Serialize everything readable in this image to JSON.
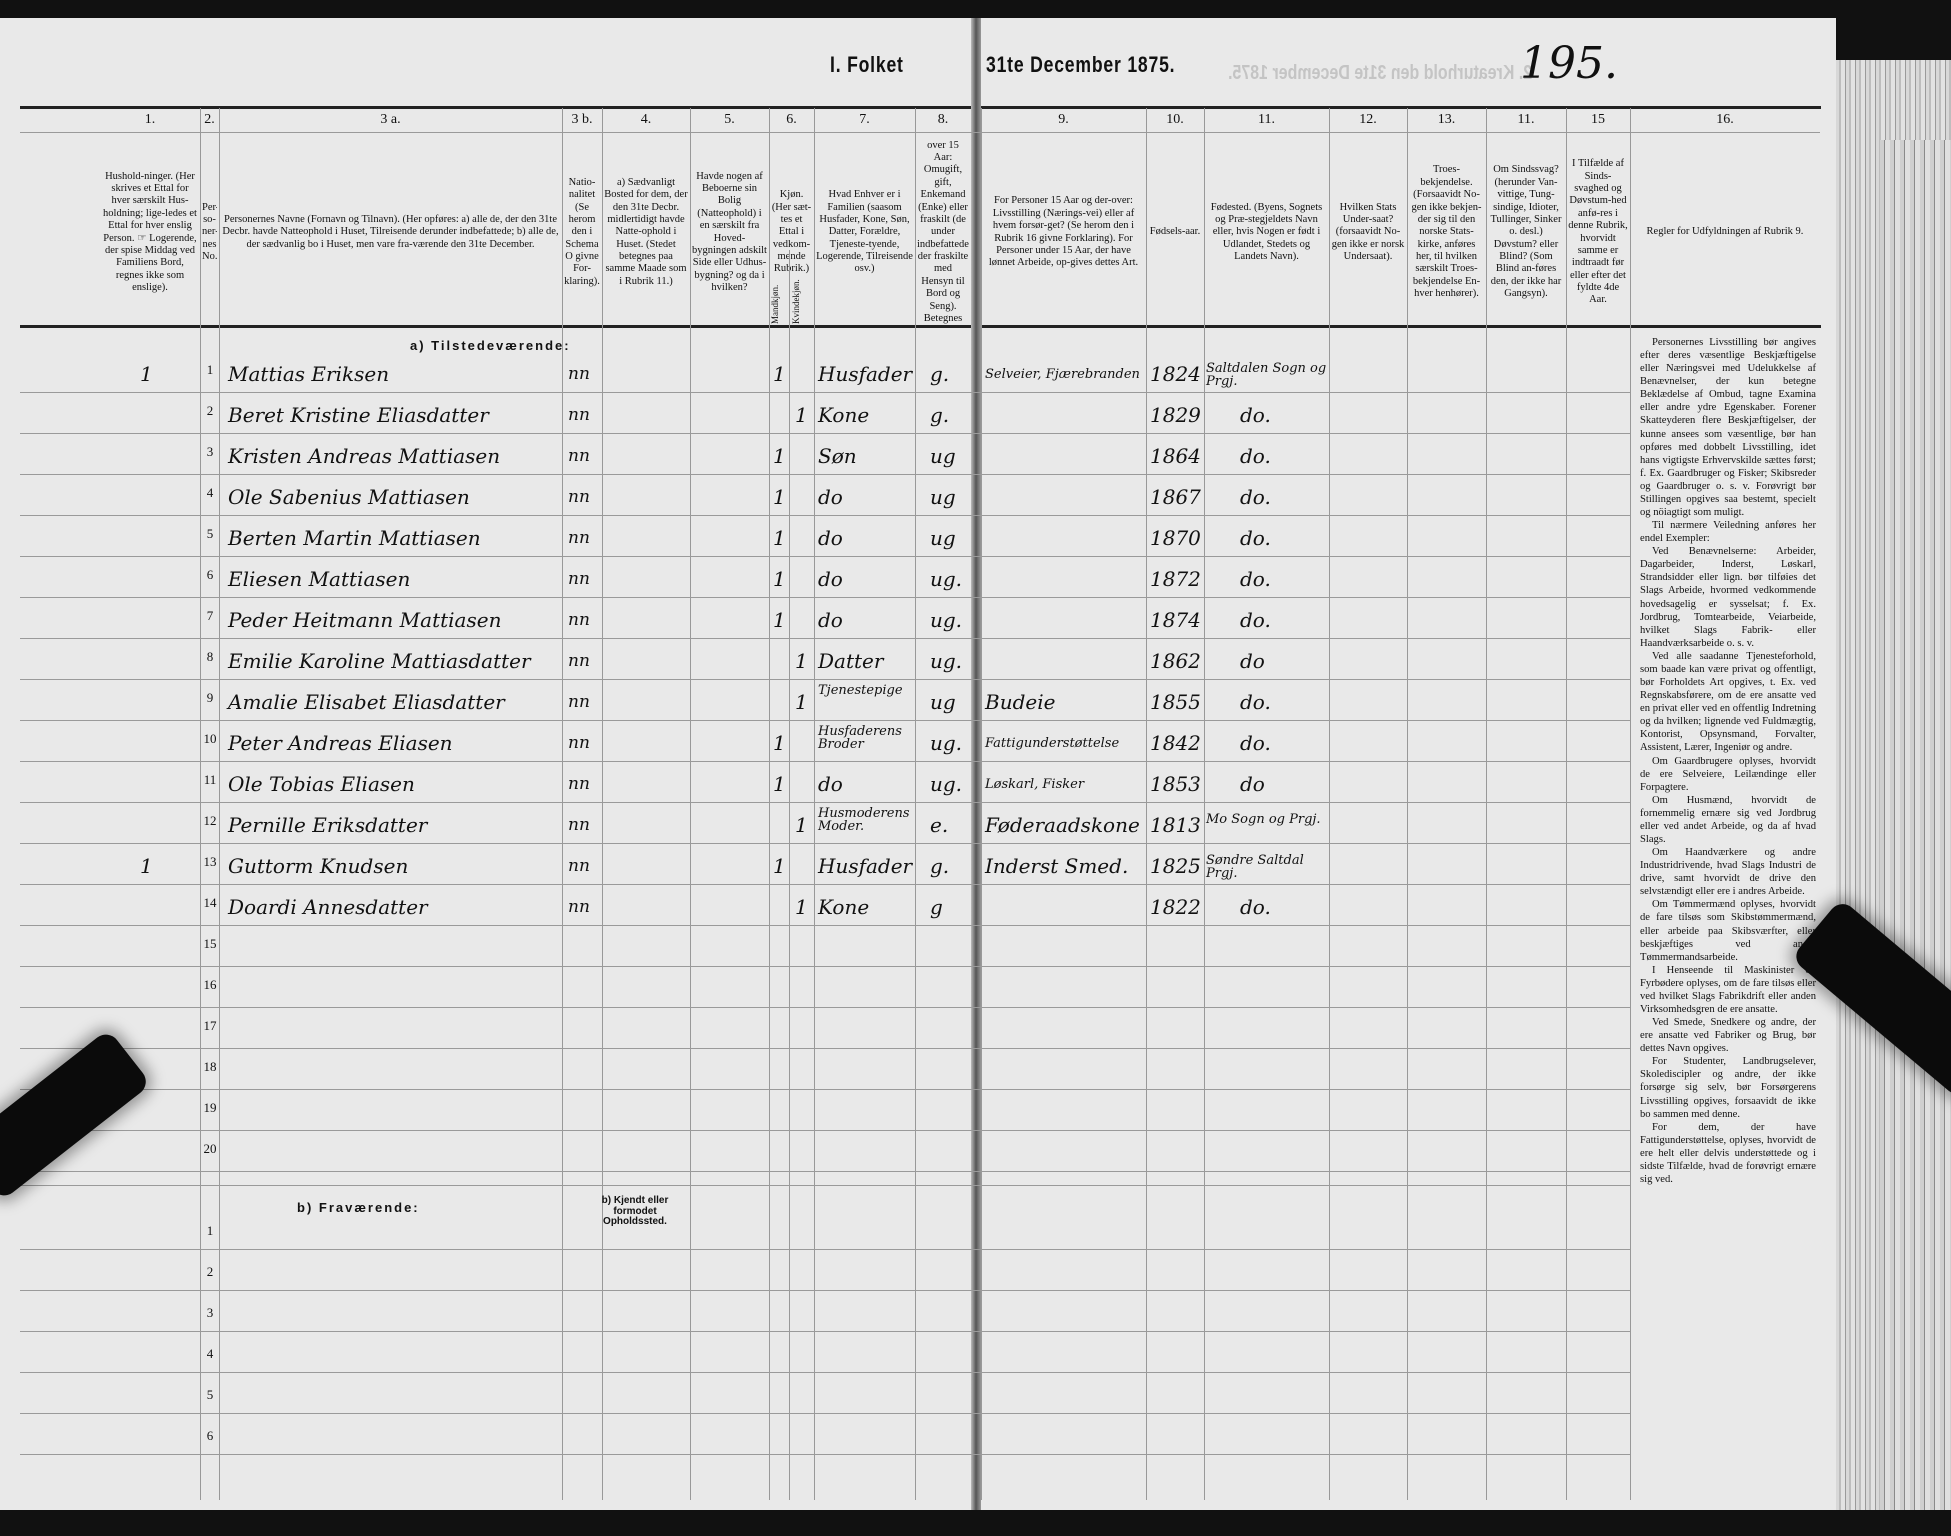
{
  "header": {
    "title_left": "I. Folket",
    "title_right": "31te December 1875.",
    "ghost_title": "2. Kreaturhold den 31te December 1875.",
    "page_number": "195."
  },
  "columns": [
    {
      "num": "1.",
      "text": "Hushold-ninger. (Her skrives et Ettal for hver særskilt Hus-holdning; lige-ledes et Ettal for hver enslig Person. ☞ Logerende, der spise Middag ved Familiens Bord, regnes ikke som enslige)."
    },
    {
      "num": "2.",
      "text": "Per-so-ner-nes No."
    },
    {
      "num": "3 a.",
      "text": "Personernes Navne (Fornavn og Tilnavn). (Her opføres: a) alle de, der den 31te Decbr. havde Natteophold i Huset, Tilreisende derunder indbefattede; b) alle de, der sædvanlig bo i Huset, men vare fra-værende den 31te December."
    },
    {
      "num": "3 b.",
      "text": "Natio-nalitet (Se herom den i Schema O givne For-klaring)."
    },
    {
      "num": "4.",
      "text": "a) Sædvanligt Bosted for dem, der den 31te Decbr. midlertidigt havde Natte-ophold i Huset. (Stedet betegnes paa samme Maade som i Rubrik 11.)"
    },
    {
      "num": "5.",
      "text": "Havde nogen af Beboerne sin Bolig (Natteophold) i en særskilt fra Hoved-bygningen adskilt Side eller Udhus-bygning? og da i hvilken?"
    },
    {
      "num": "6.",
      "text": "Kjøn. (Her sæt-tes et Ettal i vedkom-mende Rubrik.)",
      "sub": [
        "Mandkjøn.",
        "Kvindekjøn."
      ]
    },
    {
      "num": "7.",
      "text": "Hvad Enhver er i Familien (saasom Husfader, Kone, Søn, Datter, Forældre, Tjeneste-tyende, Logerende, Tilreisende osv.)"
    },
    {
      "num": "8.",
      "text": "For Personer over 15 Aar: Omugift, gift, Enkemand (Enke) eller fraskilt (de under indbefattede, der fraskilte med Hensyn til Bord og Seng). Betegnes saaledes: ug., g., e., f."
    },
    {
      "num": "9.",
      "text": "For Personer 15 Aar og der-over: Livsstilling (Nærings-vei) eller af hvem forsør-get? (Se herom den i Rubrik 16 givne Forklaring). For Personer under 15 Aar, der have lønnet Arbeide, op-gives dettes Art."
    },
    {
      "num": "10.",
      "text": "Fødsels-aar."
    },
    {
      "num": "11.",
      "text": "Fødested. (Byens, Sognets og Præ-stegjeldets Navn eller, hvis Nogen er født i Udlandet, Stedets og Landets Navn)."
    },
    {
      "num": "12.",
      "text": "Hvilken Stats Under-saat? (forsaavidt No-gen ikke er norsk Undersaat)."
    },
    {
      "num": "13.",
      "text": "Troes-bekjendelse. (Forsaavidt No-gen ikke bekjen-der sig til den norske Stats-kirke, anføres her, til hvilken særskilt Troes-bekjendelse En-hver henhører)."
    },
    {
      "num": "11.",
      "text": "Om Sindssvag? (herunder Van-vittige, Tung-sindige, Idioter, Tullinger, Sinker o. desl.) Døvstum? eller Blind? (Som Blind an-føres den, der ikke har Gangsyn)."
    },
    {
      "num": "15",
      "text": "I Tilfælde af Sinds-svaghed og Døvstum-hed anfø-res i denne Rubrik, hvorvidt samme er indtraadt før eller efter det fyldte 4de Aar."
    },
    {
      "num": "16.",
      "text": "Regler for Udfyldningen af Rubrik 9."
    }
  ],
  "sections": {
    "present": "a) Tilstedeværende:",
    "absent": "b) Fraværende:",
    "absent_note": "b) Kjendt eller formodet Opholdssted."
  },
  "row_numbers": [
    "1",
    "2",
    "3",
    "4",
    "5",
    "6",
    "7",
    "8",
    "9",
    "10",
    "11",
    "12",
    "13",
    "14",
    "15",
    "16",
    "17",
    "18",
    "19",
    "20"
  ],
  "absent_row_numbers": [
    "1",
    "2",
    "3",
    "4",
    "5",
    "6"
  ],
  "persons": [
    {
      "household": "1",
      "name": "Mattias Eriksen",
      "nationality": "nn",
      "male": "1",
      "female": "",
      "family_role": "Husfader",
      "civil": "g.",
      "occupation": "Selveier, Fjærebranden",
      "birth_year": "1824",
      "birthplace": "Saltdalen Sogn og Prgj."
    },
    {
      "household": "",
      "name": "Beret Kristine Eliasdatter",
      "nationality": "nn",
      "male": "",
      "female": "1",
      "family_role": "Kone",
      "civil": "g.",
      "occupation": "",
      "birth_year": "1829",
      "birthplace": "do."
    },
    {
      "household": "",
      "name": "Kristen Andreas Mattiasen",
      "nationality": "nn",
      "male": "1",
      "female": "",
      "family_role": "Søn",
      "civil": "ug",
      "occupation": "",
      "birth_year": "1864",
      "birthplace": "do."
    },
    {
      "household": "",
      "name": "Ole Sabenius Mattiasen",
      "nationality": "nn",
      "male": "1",
      "female": "",
      "family_role": "do",
      "civil": "ug",
      "occupation": "",
      "birth_year": "1867",
      "birthplace": "do."
    },
    {
      "household": "",
      "name": "Berten Martin Mattiasen",
      "nationality": "nn",
      "male": "1",
      "female": "",
      "family_role": "do",
      "civil": "ug",
      "occupation": "",
      "birth_year": "1870",
      "birthplace": "do."
    },
    {
      "household": "",
      "name": "Eliesen Mattiasen",
      "nationality": "nn",
      "male": "1",
      "female": "",
      "family_role": "do",
      "civil": "ug.",
      "occupation": "",
      "birth_year": "1872",
      "birthplace": "do."
    },
    {
      "household": "",
      "name": "Peder Heitmann Mattiasen",
      "nationality": "nn",
      "male": "1",
      "female": "",
      "family_role": "do",
      "civil": "ug.",
      "occupation": "",
      "birth_year": "1874",
      "birthplace": "do."
    },
    {
      "household": "",
      "name": "Emilie Karoline Mattiasdatter",
      "nationality": "nn",
      "male": "",
      "female": "1",
      "family_role": "Datter",
      "civil": "ug.",
      "occupation": "",
      "birth_year": "1862",
      "birthplace": "do"
    },
    {
      "household": "",
      "name": "Amalie Elisabet Eliasdatter",
      "nationality": "nn",
      "male": "",
      "female": "1",
      "family_role": "Tjenestepige",
      "civil": "ug",
      "occupation": "Budeie",
      "birth_year": "1855",
      "birthplace": "do."
    },
    {
      "household": "",
      "name": "Peter Andreas Eliasen",
      "nationality": "nn",
      "male": "1",
      "female": "",
      "family_role": "Husfaderens Broder",
      "civil": "ug.",
      "occupation": "Fattigunderstøttelse",
      "birth_year": "1842",
      "birthplace": "do."
    },
    {
      "household": "",
      "name": "Ole Tobias Eliasen",
      "nationality": "nn",
      "male": "1",
      "female": "",
      "family_role": "do",
      "civil": "ug.",
      "occupation": "Løskarl, Fisker",
      "birth_year": "1853",
      "birthplace": "do"
    },
    {
      "household": "",
      "name": "Pernille Eriksdatter",
      "nationality": "nn",
      "male": "",
      "female": "1",
      "family_role": "Husmoderens Moder.",
      "civil": "e.",
      "occupation": "Føderaadskone",
      "birth_year": "1813",
      "birthplace": "Mo Sogn og Prgj."
    },
    {
      "household": "1",
      "name": "Guttorm Knudsen",
      "nationality": "nn",
      "male": "1",
      "female": "",
      "family_role": "Husfader",
      "civil": "g.",
      "occupation": "Inderst Smed.",
      "birth_year": "1825",
      "birthplace": "Søndre Saltdal Prgj."
    },
    {
      "household": "",
      "name": "Doardi Annesdatter",
      "nationality": "nn",
      "male": "",
      "female": "1",
      "family_role": "Kone",
      "civil": "g",
      "occupation": "",
      "birth_year": "1822",
      "birthplace": "do."
    }
  ],
  "rules": [
    "Personernes Livsstilling bør angives efter deres væsentlige Beskjæftigelse eller Næringsvei med Udelukkelse af Benævnelser, der kun betegne Beklædelse af Ombud, tagne Examina eller andre ydre Egenskaber. Forener Skatteyderen flere Beskjæftigelser, der kunne ansees som væsentlige, bør han opføres med dobbelt Livsstilling, idet hans vigtigste Erhvervskilde sættes først; f. Ex. Gaardbruger og Fisker; Skibsreder og Gaardbruger o. s. v. Forøvrigt bør Stillingen opgives saa bestemt, specielt og nöiagtigt som muligt.",
    "Til nærmere Veiledning anføres her endel Exempler:",
    "Ved Benævnelserne: Arbeider, Dagarbeider, Inderst, Løskarl, Strandsidder eller lign. bør tilføies det Slags Arbeide, hvormed vedkommende hovedsagelig er sysselsat; f. Ex. Jordbrug, Tomtearbeide, Veiarbeide, hvilket Slags Fabrik- eller Haandværksarbeide o. s. v.",
    "Ved alle saadanne Tjenesteforhold, som baade kan være privat og offentligt, bør Forholdets Art opgives, t. Ex. ved Regnskabsførere, om de ere ansatte ved en privat eller ved en offentlig Indretning og da hvilken; lignende ved Fuldmægtig, Kontorist, Opsynsmand, Forvalter, Assistent, Lærer, Ingeniør og andre.",
    "Om Gaardbrugere oplyses, hvorvidt de ere Selveiere, Leilændinge eller Forpagtere.",
    "Om Husmænd, hvorvidt de fornemmelig ernære sig ved Jordbrug eller ved andet Arbeide, og da af hvad Slags.",
    "Om Haandværkere og andre Industridrivende, hvad Slags Industri de drive, samt hvorvidt de drive den selvstændigt eller ere i andres Arbeide.",
    "Om Tømmermænd oplyses, hvorvidt de fare tilsøs som Skibstømmermænd, eller arbeide paa Skibsværfter, eller beskjæftiges ved andet Tømmermandsarbeide.",
    "I Henseende til Maskinister og Fyrbødere oplyses, om de fare tilsøs eller ved hvilket Slags Fabrikdrift eller anden Virksomhedsgren de ere ansatte.",
    "Ved Smede, Snedkere og andre, der ere ansatte ved Fabriker og Brug, bør dettes Navn opgives.",
    "For Studenter, Landbrugselever, Skolediscipler og andre, der ikke forsørge sig selv, bør Forsørgerens Livsstilling opgives, forsaavidt de ikke bo sammen med denne.",
    "For dem, der have Fattigunderstøttelse, oplyses, hvorvidt de ere helt eller delvis understøttede og i sidste Tilfælde, hvad de forøvrigt ernære sig ved."
  ]
}
